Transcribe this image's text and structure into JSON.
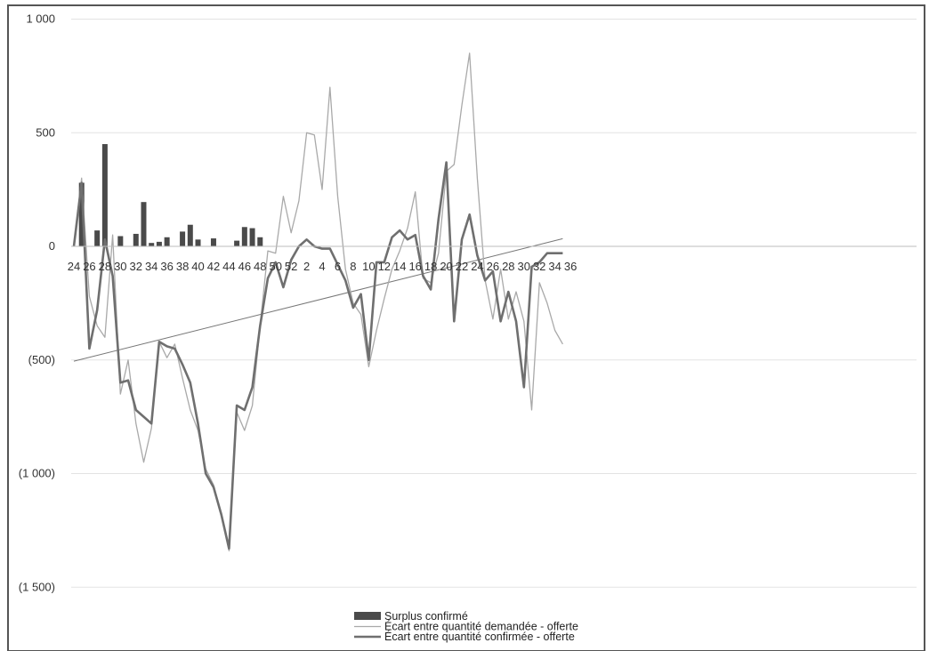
{
  "chart_data": {
    "type": "bar",
    "title": "",
    "xlabel": "",
    "ylabel": "",
    "ylim": [
      -1700,
      1000
    ],
    "y_ticks": [
      {
        "value": 1000,
        "label": "1 000"
      },
      {
        "value": 500,
        "label": "500"
      },
      {
        "value": 0,
        "label": "0"
      },
      {
        "value": -500,
        "label": "(500)"
      },
      {
        "value": -1000,
        "label": "(1 000)"
      },
      {
        "value": -1500,
        "label": "(1 500)"
      }
    ],
    "x_tick_labels": [
      "24",
      "26",
      "28",
      "30",
      "32",
      "34",
      "36",
      "38",
      "40",
      "42",
      "44",
      "46",
      "48",
      "50",
      "52",
      "2",
      "4",
      "6",
      "8",
      "10",
      "12",
      "14",
      "16",
      "18",
      "20",
      "22",
      "24",
      "26",
      "28",
      "30",
      "32",
      "34",
      "36"
    ],
    "grid": "horizontal",
    "legend_position": "bottom",
    "legend": [
      {
        "label": "Surplus confirmé",
        "kind": "bar"
      },
      {
        "label": "Écart entre quantité demandée - offerte",
        "kind": "thin-line"
      },
      {
        "label": "Écart entre quantité confirmée - offerte",
        "kind": "thick-line"
      }
    ],
    "series": [
      {
        "name": "Surplus confirmé",
        "type": "bar",
        "values": [
          0,
          280,
          0,
          70,
          450,
          0,
          45,
          0,
          55,
          195,
          15,
          20,
          40,
          0,
          65,
          95,
          30,
          0,
          35,
          0,
          0,
          25,
          85,
          80,
          40,
          0,
          0,
          0,
          0,
          0,
          0,
          0,
          0,
          0,
          0,
          0,
          0,
          0,
          0,
          0,
          0,
          0,
          0,
          0,
          0,
          0,
          0,
          0,
          0,
          0,
          0,
          0,
          0,
          0,
          0,
          0,
          0,
          0,
          0,
          0,
          0,
          0,
          0,
          0,
          0,
          0,
          0,
          0,
          0,
          0,
          0,
          0,
          0,
          0,
          0,
          0,
          0,
          0,
          0,
          0,
          0,
          0,
          0,
          0,
          0,
          0,
          0,
          0,
          0,
          0,
          0,
          0,
          0,
          0,
          0,
          0,
          0,
          0,
          0,
          0,
          0,
          0
        ]
      },
      {
        "name": "Écart entre quantité demandée - offerte",
        "type": "line",
        "values": [
          0,
          300,
          -220,
          -350,
          -400,
          50,
          -650,
          -500,
          -780,
          -950,
          -800,
          -420,
          -490,
          -430,
          -580,
          -720,
          -810,
          -980,
          -1050,
          -1180,
          -1340,
          -730,
          -810,
          -700,
          -350,
          -20,
          -30,
          220,
          60,
          200,
          500,
          490,
          250,
          700,
          220,
          -100,
          -250,
          -300,
          -530,
          -370,
          -230,
          -100,
          -20,
          80,
          240,
          -140,
          -160,
          -30,
          330,
          360,
          620,
          850,
          300,
          -150,
          -320,
          -100,
          -320,
          -200,
          -330,
          -720,
          -160,
          -250,
          -370,
          -430
        ]
      },
      {
        "name": "Écart entre quantité confirmée - offerte",
        "type": "line",
        "values": [
          0,
          280,
          -450,
          -280,
          30,
          -130,
          -600,
          -590,
          -720,
          -750,
          -780,
          -420,
          -440,
          -450,
          -520,
          -600,
          -780,
          -1000,
          -1060,
          -1180,
          -1330,
          -700,
          -720,
          -620,
          -350,
          -140,
          -70,
          -180,
          -60,
          0,
          30,
          0,
          -10,
          -10,
          -80,
          -150,
          -270,
          -210,
          -500,
          -70,
          -70,
          40,
          70,
          30,
          50,
          -130,
          -190,
          120,
          370,
          -330,
          30,
          140,
          -40,
          -150,
          -110,
          -330,
          -200,
          -330,
          -620,
          -90,
          -70,
          -30,
          -30,
          -30
        ]
      }
    ]
  }
}
